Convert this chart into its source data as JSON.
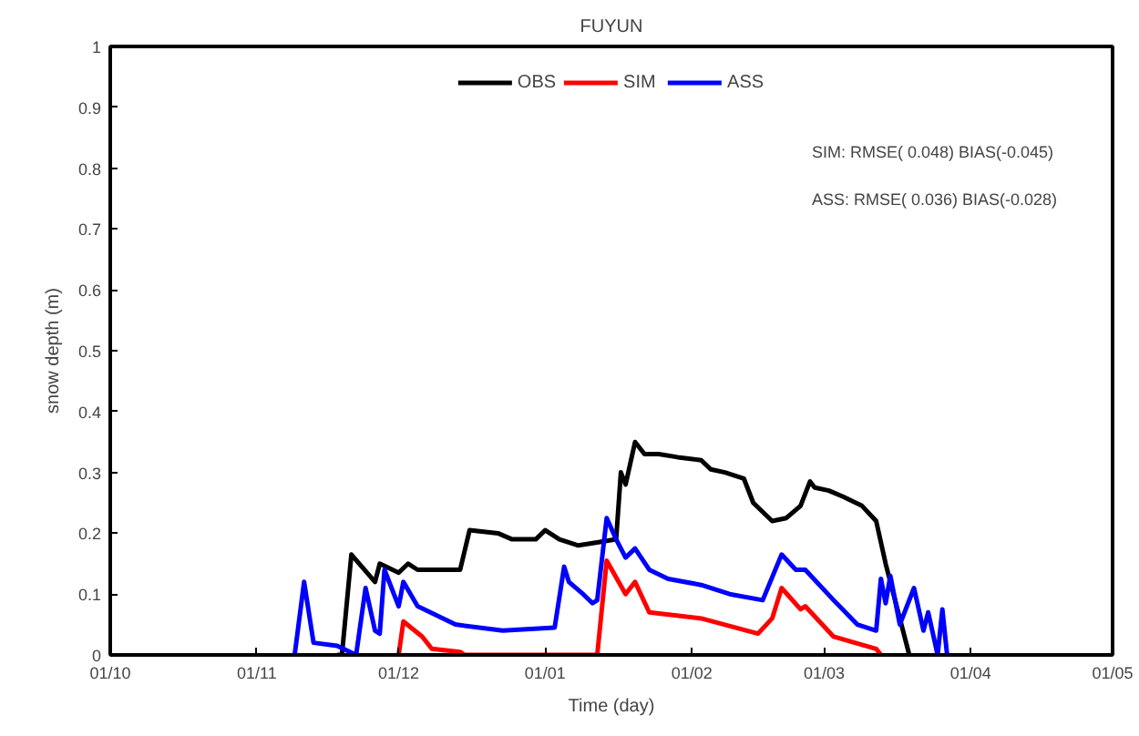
{
  "chart_data": {
    "type": "line",
    "title": "FUYUN",
    "xlabel": "Time (day)",
    "ylabel": "snow depth (m)",
    "xlim": [
      "2009-10-01",
      "2010-05-01"
    ],
    "ylim": [
      0,
      1
    ],
    "xticks": [
      {
        "value": "2009-10-01",
        "label": "01/10"
      },
      {
        "value": "2009-11-01",
        "label": "01/11"
      },
      {
        "value": "2009-12-01",
        "label": "01/12"
      },
      {
        "value": "2010-01-01",
        "label": "01/01"
      },
      {
        "value": "2010-02-01",
        "label": "01/02"
      },
      {
        "value": "2010-03-01",
        "label": "01/03"
      },
      {
        "value": "2010-04-01",
        "label": "01/04"
      },
      {
        "value": "2010-05-01",
        "label": "01/05"
      }
    ],
    "yticks": [
      0,
      0.1,
      0.2,
      0.3,
      0.4,
      0.5,
      0.6,
      0.7,
      0.8,
      0.9,
      1
    ],
    "grid": false,
    "legend": "top",
    "line_style": "solid",
    "marker": "none",
    "annotations": [
      "SIM:  RMSE( 0.048)  BIAS(-0.045)",
      "ASS:  RMSE( 0.036)  BIAS(-0.028)"
    ],
    "series": [
      {
        "name": "OBS",
        "color": "#000000",
        "x": [
          "2009-11-18",
          "2009-11-19",
          "2009-11-21",
          "2009-11-26",
          "2009-11-27",
          "2009-12-01",
          "2009-12-03",
          "2009-12-05",
          "2009-12-14",
          "2009-12-16",
          "2009-12-22",
          "2009-12-25",
          "2009-12-30",
          "2010-01-01",
          "2010-01-04",
          "2010-01-08",
          "2010-01-12",
          "2010-01-16",
          "2010-01-17",
          "2010-01-18",
          "2010-01-20",
          "2010-01-22",
          "2010-01-25",
          "2010-01-29",
          "2010-02-03",
          "2010-02-05",
          "2010-02-08",
          "2010-02-12",
          "2010-02-14",
          "2010-02-18",
          "2010-02-21",
          "2010-02-24",
          "2010-02-26",
          "2010-02-27",
          "2010-03-02",
          "2010-03-05",
          "2010-03-09",
          "2010-03-12",
          "2010-03-14",
          "2010-03-17",
          "2010-03-19"
        ],
        "values": [
          0,
          0,
          0.165,
          0.12,
          0.15,
          0.135,
          0.15,
          0.14,
          0.14,
          0.205,
          0.2,
          0.19,
          0.19,
          0.205,
          0.19,
          0.18,
          0.185,
          0.19,
          0.3,
          0.28,
          0.35,
          0.33,
          0.33,
          0.325,
          0.32,
          0.305,
          0.3,
          0.29,
          0.25,
          0.22,
          0.225,
          0.245,
          0.285,
          0.275,
          0.27,
          0.26,
          0.245,
          0.22,
          0.15,
          0.06,
          0
        ]
      },
      {
        "name": "SIM",
        "color": "#ff0000",
        "x": [
          "2009-12-01",
          "2009-12-02",
          "2009-12-06",
          "2009-12-08",
          "2009-12-14",
          "2009-12-15",
          "2010-01-12",
          "2010-01-14",
          "2010-01-18",
          "2010-01-20",
          "2010-01-23",
          "2010-02-03",
          "2010-02-15",
          "2010-02-18",
          "2010-02-20",
          "2010-02-24",
          "2010-02-25",
          "2010-03-03",
          "2010-03-12",
          "2010-03-13"
        ],
        "values": [
          0,
          0.055,
          0.03,
          0.01,
          0.005,
          0,
          0,
          0.155,
          0.1,
          0.12,
          0.07,
          0.06,
          0.035,
          0.06,
          0.11,
          0.075,
          0.08,
          0.03,
          0.01,
          0
        ]
      },
      {
        "name": "ASS",
        "color": "#0000ff",
        "x": [
          "2009-11-09",
          "2009-11-11",
          "2009-11-13",
          "2009-11-18",
          "2009-11-22",
          "2009-11-24",
          "2009-11-26",
          "2009-11-27",
          "2009-11-28",
          "2009-12-01",
          "2009-12-02",
          "2009-12-05",
          "2009-12-13",
          "2009-12-23",
          "2010-01-03",
          "2010-01-05",
          "2010-01-06",
          "2010-01-09",
          "2010-01-11",
          "2010-01-12",
          "2010-01-14",
          "2010-01-16",
          "2010-01-18",
          "2010-01-20",
          "2010-01-23",
          "2010-01-27",
          "2010-02-03",
          "2010-02-09",
          "2010-02-16",
          "2010-02-20",
          "2010-02-23",
          "2010-02-25",
          "2010-03-03",
          "2010-03-08",
          "2010-03-12",
          "2010-03-13",
          "2010-03-14",
          "2010-03-15",
          "2010-03-17",
          "2010-03-20",
          "2010-03-22",
          "2010-03-23",
          "2010-03-25",
          "2010-03-26",
          "2010-03-27"
        ],
        "values": [
          0,
          0.12,
          0.02,
          0.015,
          0,
          0.11,
          0.04,
          0.035,
          0.14,
          0.08,
          0.12,
          0.08,
          0.05,
          0.04,
          0.045,
          0.145,
          0.12,
          0.1,
          0.085,
          0.09,
          0.225,
          0.19,
          0.16,
          0.175,
          0.14,
          0.125,
          0.115,
          0.1,
          0.09,
          0.165,
          0.14,
          0.14,
          0.09,
          0.05,
          0.04,
          0.125,
          0.085,
          0.13,
          0.05,
          0.11,
          0.04,
          0.07,
          0,
          0.075,
          0
        ]
      }
    ]
  }
}
